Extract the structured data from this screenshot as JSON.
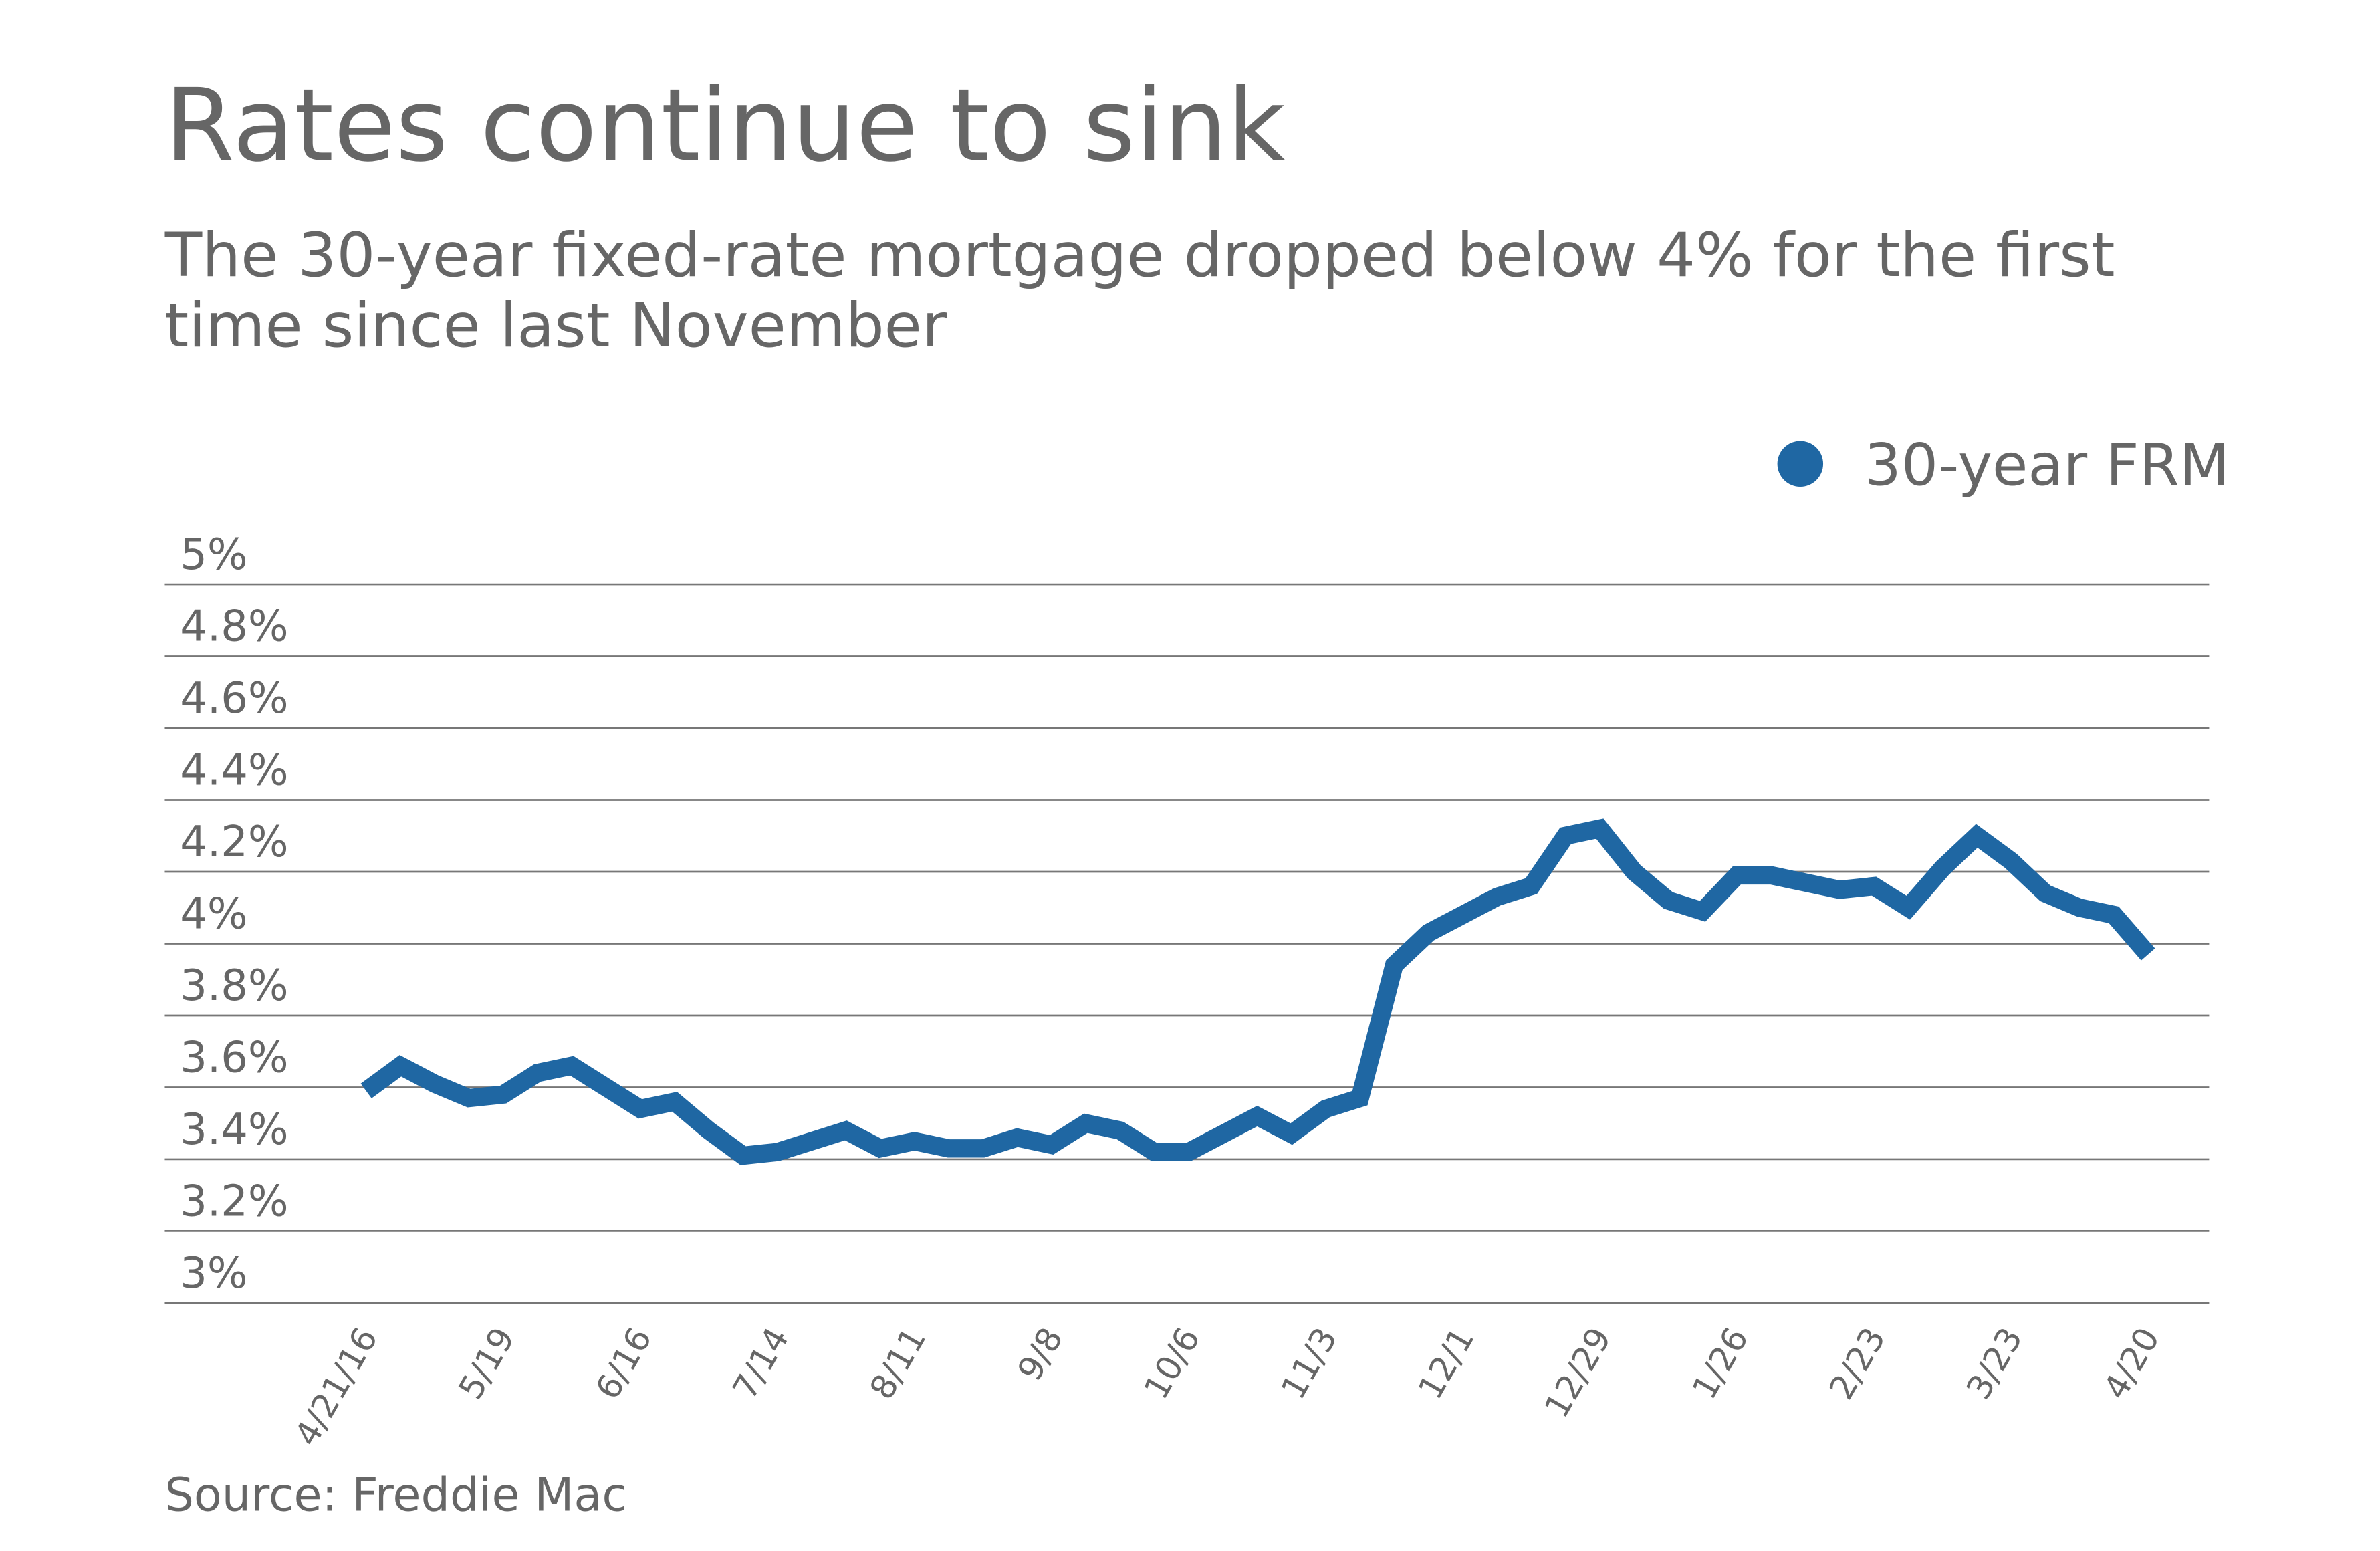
{
  "chart_data": {
    "type": "line",
    "title": "Rates continue to sink",
    "subtitle": "The 30-year fixed-rate mortgage dropped below 4% for the first time since last November",
    "source": "Source: Freddie Mac",
    "categories": [
      "4/21/16",
      null,
      null,
      null,
      "5/19",
      null,
      null,
      null,
      "6/16",
      null,
      null,
      null,
      "7/14",
      null,
      null,
      null,
      "8/11",
      null,
      null,
      null,
      "9/8",
      null,
      null,
      null,
      "10/6",
      null,
      null,
      null,
      "11/3",
      null,
      null,
      null,
      "12/1",
      null,
      null,
      null,
      "12/29",
      null,
      null,
      null,
      "1/26",
      null,
      null,
      null,
      "2/23",
      null,
      null,
      null,
      "3/23",
      null,
      null,
      null,
      "4/20"
    ],
    "series": [
      {
        "name": "30-year FRM",
        "color": "#1f67a3",
        "values": [
          3.59,
          3.66,
          3.61,
          3.57,
          3.58,
          3.64,
          3.66,
          3.6,
          3.54,
          3.56,
          3.48,
          3.41,
          3.42,
          3.45,
          3.48,
          3.43,
          3.45,
          3.43,
          3.43,
          3.46,
          3.44,
          3.5,
          3.48,
          3.42,
          3.42,
          3.47,
          3.52,
          3.47,
          3.54,
          3.57,
          3.94,
          4.03,
          4.08,
          4.13,
          4.16,
          4.3,
          4.32,
          4.2,
          4.12,
          4.09,
          4.19,
          4.19,
          4.17,
          4.15,
          4.16,
          4.1,
          4.21,
          4.3,
          4.23,
          4.14,
          4.1,
          4.08,
          3.97
        ]
      }
    ],
    "ylim": [
      3,
      5
    ],
    "yticks": [
      {
        "value": 3,
        "label": "3%"
      },
      {
        "value": 3.2,
        "label": "3.2%"
      },
      {
        "value": 3.4,
        "label": "3.4%"
      },
      {
        "value": 3.6,
        "label": "3.6%"
      },
      {
        "value": 3.8,
        "label": "3.8%"
      },
      {
        "value": 4,
        "label": "4%"
      },
      {
        "value": 4.2,
        "label": "4.2%"
      },
      {
        "value": 4.4,
        "label": "4.4%"
      },
      {
        "value": 4.6,
        "label": "4.6%"
      },
      {
        "value": 4.8,
        "label": "4.8%"
      },
      {
        "value": 5,
        "label": "5%"
      }
    ],
    "grid": true,
    "legend": "top-right"
  }
}
